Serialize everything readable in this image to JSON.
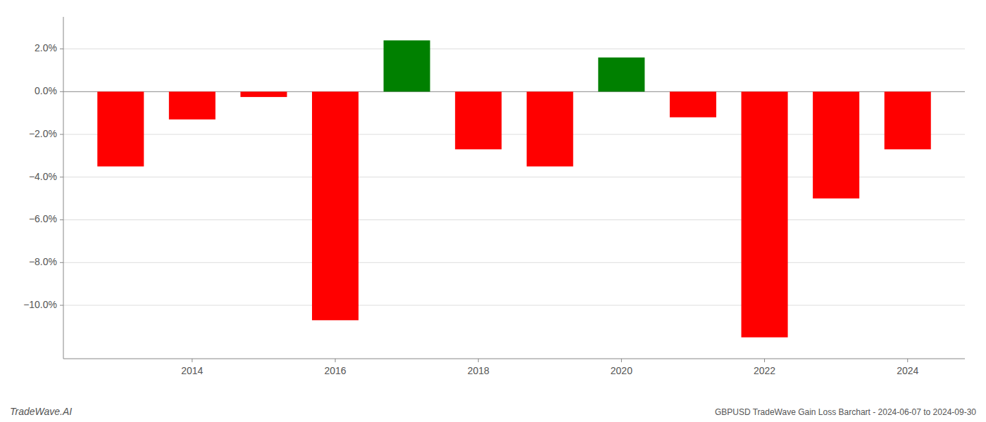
{
  "chart_data": {
    "type": "bar",
    "title": "GBPUSD TradeWave Gain Loss Barchart - 2024-06-07 to 2024-09-30",
    "annotations": [
      "TradeWave.AI"
    ],
    "x": [
      2013,
      2014,
      2015,
      2016,
      2017,
      2018,
      2019,
      2020,
      2021,
      2022,
      2023,
      2024
    ],
    "values": [
      -3.5,
      -1.3,
      -0.25,
      -10.7,
      2.4,
      -2.7,
      -3.5,
      1.6,
      -1.2,
      -11.5,
      -5.0,
      -2.7
    ],
    "colors": [
      "#FF0000",
      "#FF0000",
      "#FF0000",
      "#FF0000",
      "#008000",
      "#FF0000",
      "#FF0000",
      "#008000",
      "#FF0000",
      "#FF0000",
      "#FF0000",
      "#FF0000"
    ],
    "xlim": [
      2012.2,
      2024.8
    ],
    "xticks": [
      2014,
      2016,
      2018,
      2020,
      2022,
      2024
    ],
    "ylim": [
      -12.5,
      3.5
    ],
    "yticks": [
      {
        "value": -10.0,
        "label": "−10.0%"
      },
      {
        "value": -8.0,
        "label": "−8.0%"
      },
      {
        "value": -6.0,
        "label": "−6.0%"
      },
      {
        "value": -4.0,
        "label": "−4.0%"
      },
      {
        "value": -2.0,
        "label": "−2.0%"
      },
      {
        "value": 0.0,
        "label": "0.0%"
      },
      {
        "value": 2.0,
        "label": "2.0%"
      }
    ],
    "grid": true
  }
}
